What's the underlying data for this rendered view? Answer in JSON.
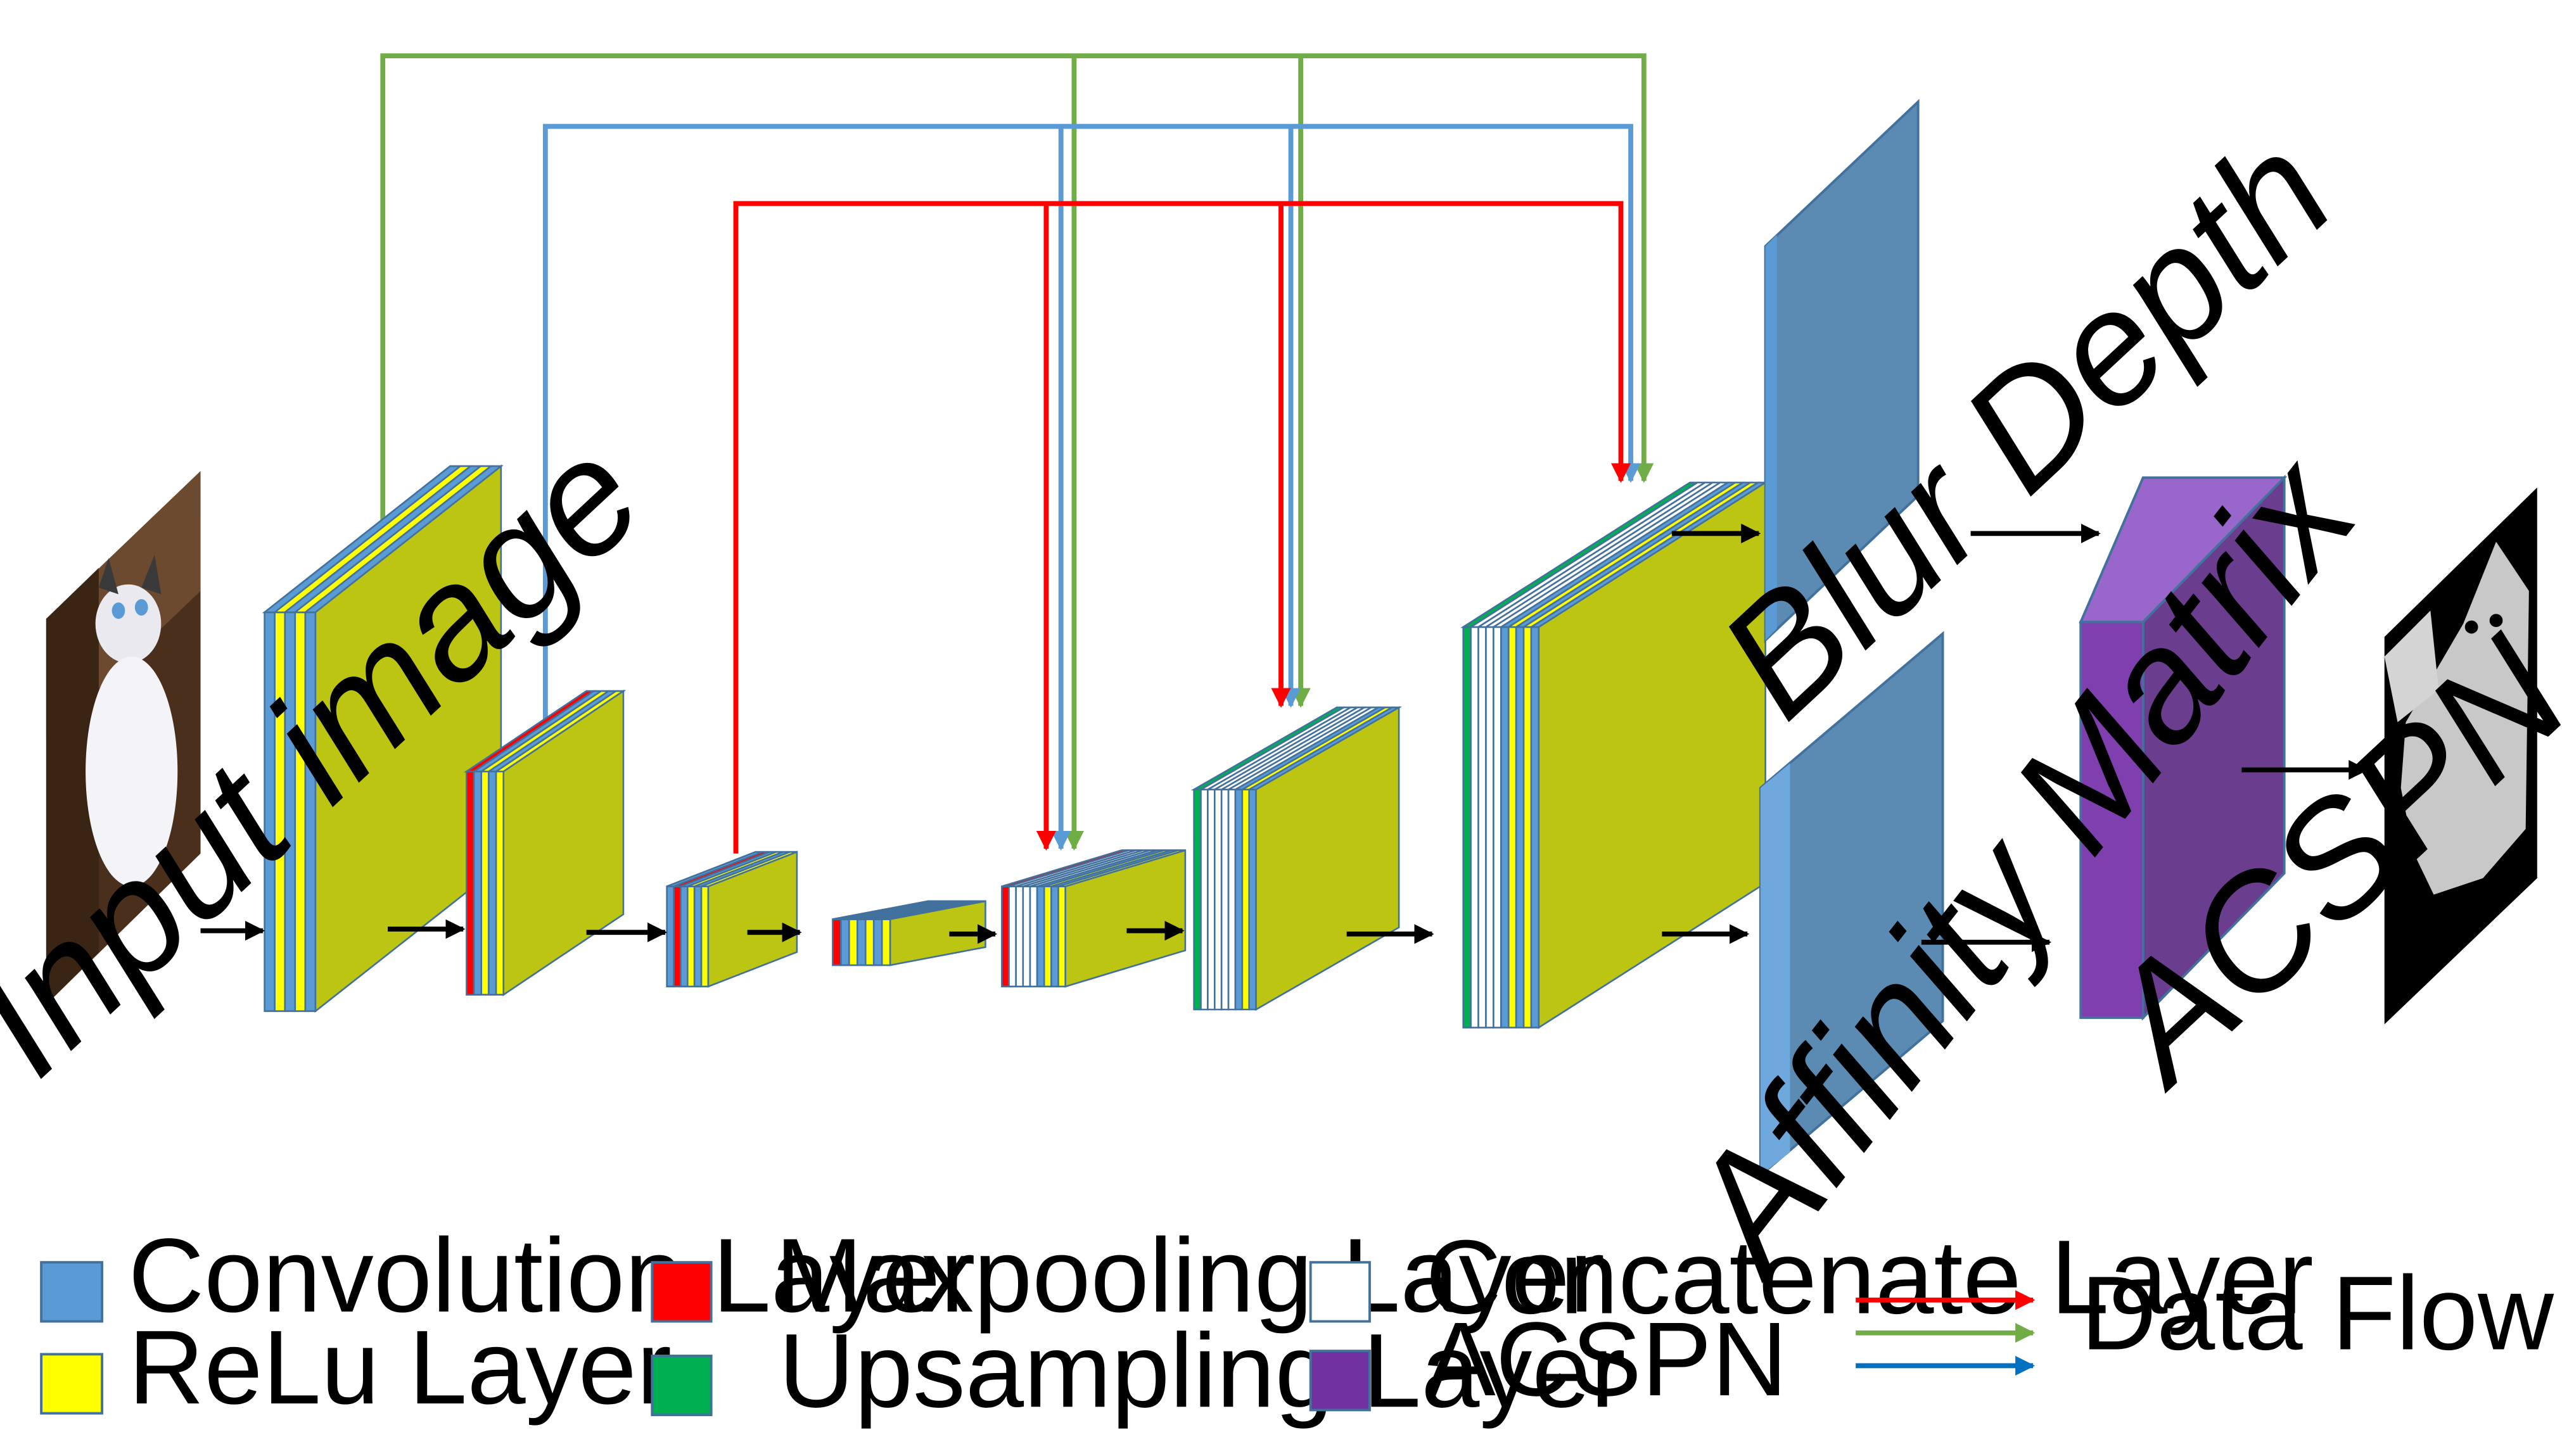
{
  "colors": {
    "convolution": "#5b9bd5",
    "relu": "#ffff00",
    "relu_face": "#bdc513",
    "maxpooling": "#ff0000",
    "upsampling": "#00b050",
    "concatenate": "#ffffff",
    "acspn": "#7030a0",
    "outline": "#41719c",
    "flow_red": "#ff0000",
    "flow_green": "#70ad47",
    "flow_blue": "#5b9bd5",
    "arrow": "#000000"
  },
  "labels": {
    "input": "Input image",
    "blur_depth": "Blur Depth",
    "affinity": "Affinity Matrix",
    "acspn": "ACSPN"
  },
  "legend": {
    "convolution": "Convolution Layer",
    "relu": "ReLu Layer",
    "maxpooling": "Maxpooling Layer",
    "upsampling": "Upsampling Layer",
    "concatenate": "Concatenate Layer",
    "acspn": "ACSPN",
    "data_flow": "Data Flow"
  },
  "icons": {
    "input_image": "cat-photo",
    "output_image": "depth-map"
  }
}
